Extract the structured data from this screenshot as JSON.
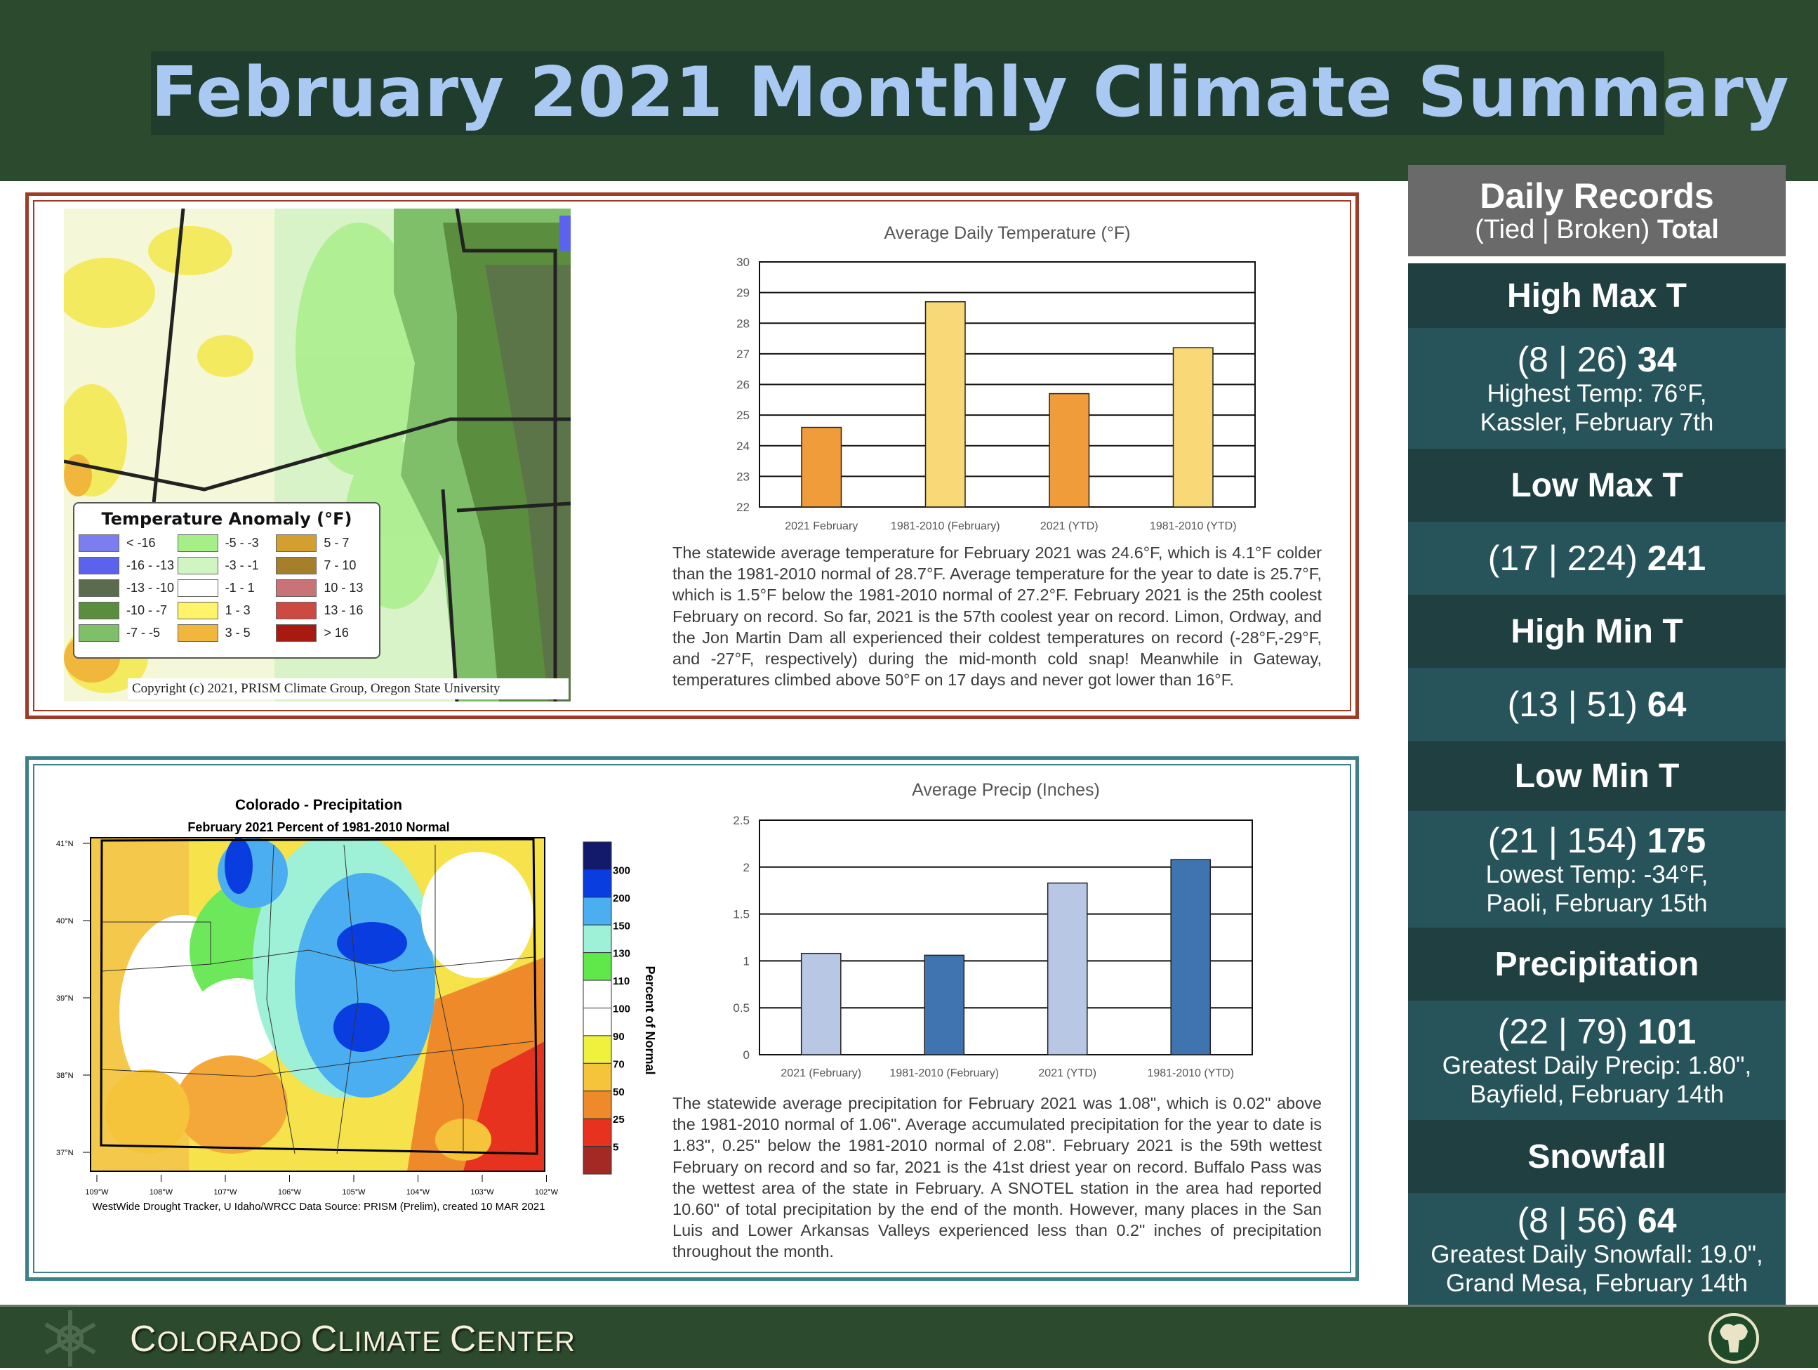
{
  "title": "February 2021 Monthly Climate Summary",
  "temperature": {
    "map_legend_title": "Temperature Anomaly (°F)",
    "map_legend": [
      {
        "label": "< -16",
        "color": "#7a7ef0"
      },
      {
        "label": "-5 - -3",
        "color": "#a6ee86"
      },
      {
        "label": "5 - 7",
        "color": "#d39f2e"
      },
      {
        "label": "-16 - -13",
        "color": "#5b63ee"
      },
      {
        "label": "-3 - -1",
        "color": "#cff5c0"
      },
      {
        "label": "7 - 10",
        "color": "#a67f2a"
      },
      {
        "label": "-13 - -10",
        "color": "#5b6b4d"
      },
      {
        "label": "-1 - 1",
        "color": "#ffffff"
      },
      {
        "label": "10 - 13",
        "color": "#c97378"
      },
      {
        "label": "-10 - -7",
        "color": "#5b8d3e"
      },
      {
        "label": "1 - 3",
        "color": "#fff36a"
      },
      {
        "label": "13 - 16",
        "color": "#cc4a42"
      },
      {
        "label": "-7 - -5",
        "color": "#7fbf6a"
      },
      {
        "label": "3 - 5",
        "color": "#f1b63c"
      },
      {
        "label": "> 16",
        "color": "#a8190f"
      }
    ],
    "copyright": "Copyright (c) 2021, PRISM Climate Group, Oregon State University",
    "paragraph": "The statewide average temperature for February 2021 was 24.6°F, which is 4.1°F colder than the 1981-2010 normal of 28.7°F. Average temperature for the year to date is 25.7°F, which is 1.5°F below the 1981-2010 normal of 27.2°F. February 2021 is the 25th coolest February on record. So far, 2021 is the 57th coolest year on record. Limon, Ordway, and the Jon Martin Dam all experienced their coldest temperatures on record (-28°F,-29°F, and -27°F, respectively) during the mid-month cold snap! Meanwhile in Gateway, temperatures climbed above 50°F on 17 days and never got lower than 16°F."
  },
  "precipitation": {
    "map_title": "Colorado - Precipitation",
    "map_subtitle": "February 2021  Percent of 1981-2010 Normal",
    "lat_labels": [
      "41°N",
      "40°N",
      "39°N",
      "38°N",
      "37°N"
    ],
    "lon_labels": [
      "109°W",
      "108°W",
      "107°W",
      "106°W",
      "105°W",
      "104°W",
      "103°W",
      "102°W"
    ],
    "colorbar_labels": [
      "300",
      "200",
      "150",
      "130",
      "110",
      "100",
      "90",
      "70",
      "50",
      "25",
      "5"
    ],
    "colorbar_colors": [
      "#141a6b",
      "#0a3de0",
      "#4aaef0",
      "#9ef0d6",
      "#5ee84a",
      "#ffffff",
      "#ffffff",
      "#eef23c",
      "#f6c43a",
      "#ef8a2a",
      "#e6321e",
      "#a32a24"
    ],
    "colorbar_title": "Percent of Normal",
    "source": "WestWide Drought Tracker, U Idaho/WRCC Data Source: PRISM (Prelim), created 10 MAR 2021",
    "paragraph": "The statewide average precipitation for February 2021 was 1.08\", which is 0.02\" above the 1981-2010 normal of 1.06\". Average accumulated precipitation for the year to date is 1.83\", 0.25\" below the 1981-2010 normal of 2.08\".  February 2021 is the 59th wettest February on record and so far, 2021 is the 41st driest year on record. Buffalo Pass was the wettest area of the state in February. A SNOTEL station in the area had reported 10.60\" of total precipitation by the end of the month. However, many places in the San Luis and Lower Arkansas Valleys experienced less than 0.2\" inches of precipitation throughout the month."
  },
  "chart_data": [
    {
      "type": "bar",
      "title": "Average Daily Temperature (°F)",
      "categories": [
        "2021 February",
        "1981-2010 (February)",
        "2021 (YTD)",
        "1981-2010 (YTD)"
      ],
      "values": [
        24.6,
        28.7,
        25.7,
        27.2
      ],
      "colors": [
        "#f09c3a",
        "#f8d877",
        "#f09c3a",
        "#f8d877"
      ],
      "ylim": [
        22,
        30
      ],
      "yticks": [
        "22",
        "23",
        "24",
        "25",
        "26",
        "27",
        "28",
        "29",
        "30"
      ],
      "xlabel": "",
      "ylabel": "",
      "grid": true
    },
    {
      "type": "bar",
      "title": "Average Precip (Inches)",
      "categories": [
        "2021 (February)",
        "1981-2010 (February)",
        "2021 (YTD)",
        "1981-2010 (YTD)"
      ],
      "values": [
        1.08,
        1.06,
        1.83,
        2.08
      ],
      "colors": [
        "#b8c8e4",
        "#3f74b0",
        "#b8c8e4",
        "#3f74b0"
      ],
      "ylim": [
        0,
        2.5
      ],
      "yticks": [
        "0",
        "0.5",
        "1",
        "1.5",
        "2",
        "2.5"
      ],
      "xlabel": "",
      "ylabel": "",
      "grid": true
    }
  ],
  "sidebar": {
    "title": "Daily Records",
    "subtitle_prefix": "(Tied | Broken)",
    "subtitle_total": "Total",
    "records": [
      {
        "category": "High Max T",
        "counts": "(8 | 26)",
        "total": "34",
        "detail1": "Highest Temp: 76°F,",
        "detail2": "Kassler, February 7th"
      },
      {
        "category": "Low Max T",
        "counts": "(17 | 224)",
        "total": "241",
        "detail1": "",
        "detail2": ""
      },
      {
        "category": "High Min T",
        "counts": "(13 | 51)",
        "total": "64",
        "detail1": "",
        "detail2": ""
      },
      {
        "category": "Low Min T",
        "counts": "(21 | 154)",
        "total": "175",
        "detail1": "Lowest Temp: -34°F,",
        "detail2": "Paoli, February 15th"
      },
      {
        "category": "Precipitation",
        "counts": "(22 | 79)",
        "total": "101",
        "detail1": "Greatest Daily Precip: 1.80\",",
        "detail2": "Bayfield, February 14th"
      },
      {
        "category": "Snowfall",
        "counts": "(8 | 56)",
        "total": "64",
        "detail1": "Greatest Daily Snowfall: 19.0\",",
        "detail2": "Grand Mesa, February 14th"
      }
    ]
  },
  "footer": {
    "c1": "C",
    "w1": "OLORADO ",
    "c2": "C",
    "w2": "LIMATE ",
    "c3": "C",
    "w3": "ENTER"
  }
}
